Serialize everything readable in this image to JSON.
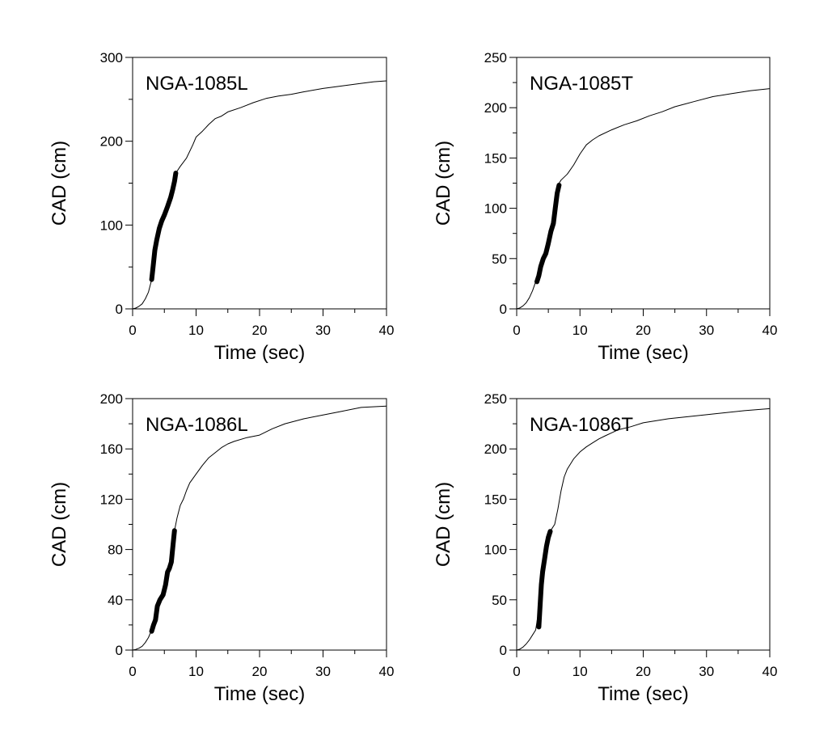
{
  "chart_data": [
    {
      "type": "line",
      "label": "NGA-1085L",
      "xlabel": "Time (sec)",
      "ylabel": "CAD (cm)",
      "xlim": [
        0,
        40
      ],
      "ylim": [
        0,
        300
      ],
      "xticks": [
        0,
        10,
        20,
        30,
        40
      ],
      "yticks": [
        0,
        100,
        200,
        300
      ],
      "grid": false,
      "series": [
        {
          "style": "thin",
          "x": [
            0,
            0.5,
            1,
            1.5,
            2,
            2.5,
            3,
            3.5,
            4,
            5,
            6,
            6.8,
            7.5,
            8.5,
            9.5,
            10,
            11,
            12,
            13,
            14,
            15,
            17,
            19,
            21,
            23,
            25,
            27,
            30,
            33,
            36,
            38,
            40
          ],
          "y": [
            0,
            1,
            3,
            6,
            12,
            20,
            35,
            70,
            92,
            112,
            133,
            162,
            170,
            180,
            196,
            205,
            212,
            220,
            227,
            230,
            235,
            240,
            246,
            251,
            254,
            256,
            259,
            263,
            266,
            269,
            271,
            272
          ]
        },
        {
          "style": "thick",
          "x": [
            3,
            3.2,
            3.5,
            3.8,
            4.2,
            4.6,
            5,
            5.5,
            6,
            6.3,
            6.6,
            6.8
          ],
          "y": [
            35,
            48,
            70,
            82,
            96,
            105,
            112,
            122,
            133,
            142,
            152,
            162
          ]
        }
      ]
    },
    {
      "type": "line",
      "label": "NGA-1085T",
      "xlabel": "Time (sec)",
      "ylabel": "CAD (cm)",
      "xlim": [
        0,
        40
      ],
      "ylim": [
        0,
        250
      ],
      "xticks": [
        0,
        10,
        20,
        30,
        40
      ],
      "yticks": [
        0,
        50,
        100,
        150,
        200,
        250
      ],
      "grid": false,
      "series": [
        {
          "style": "thin",
          "x": [
            0,
            0.5,
            1,
            1.5,
            2,
            2.5,
            3,
            3.5,
            4,
            4.5,
            5,
            5.5,
            6,
            6.5,
            7,
            8,
            9,
            10,
            11,
            12,
            13,
            15,
            17,
            19,
            21,
            23,
            25,
            28,
            31,
            34,
            37,
            40
          ],
          "y": [
            0,
            1,
            3,
            6,
            11,
            18,
            27,
            38,
            50,
            56,
            73,
            85,
            100,
            123,
            128,
            134,
            143,
            154,
            163,
            168,
            172,
            178,
            183,
            187,
            192,
            196,
            201,
            206,
            211,
            214,
            217,
            219
          ]
        },
        {
          "style": "thick",
          "x": [
            3.2,
            3.5,
            3.8,
            4.2,
            4.6,
            5,
            5.4,
            5.8,
            6.1,
            6.4,
            6.7
          ],
          "y": [
            27,
            33,
            42,
            50,
            55,
            65,
            77,
            85,
            100,
            115,
            123
          ]
        }
      ]
    },
    {
      "type": "line",
      "label": "NGA-1086L",
      "xlabel": "Time (sec)",
      "ylabel": "CAD (cm)",
      "xlim": [
        0,
        40
      ],
      "ylim": [
        0,
        200
      ],
      "xticks": [
        0,
        10,
        20,
        30,
        40
      ],
      "yticks": [
        0,
        40,
        80,
        120,
        160,
        200
      ],
      "grid": false,
      "series": [
        {
          "style": "thin",
          "x": [
            0,
            0.5,
            1,
            1.5,
            2,
            2.5,
            3,
            3.5,
            4,
            4.5,
            5,
            5.5,
            6,
            6.6,
            7,
            7.5,
            8,
            8.5,
            9,
            10,
            11,
            12,
            13,
            14,
            15,
            16,
            18,
            20,
            22,
            24,
            27,
            30,
            33,
            36,
            40
          ],
          "y": [
            0,
            0.5,
            1.5,
            3,
            6,
            10,
            16,
            24,
            36,
            42,
            46,
            60,
            66,
            95,
            105,
            115,
            120,
            127,
            133,
            140,
            147,
            153,
            157,
            161,
            164,
            166,
            169,
            171,
            176,
            180,
            184,
            187,
            190,
            193,
            194
          ]
        },
        {
          "style": "thick",
          "x": [
            3,
            3.3,
            3.6,
            3.9,
            4.3,
            4.8,
            5.2,
            5.5,
            5.8,
            6.1,
            6.4,
            6.6
          ],
          "y": [
            15,
            20,
            24,
            35,
            40,
            44,
            52,
            62,
            65,
            70,
            85,
            95
          ]
        }
      ]
    },
    {
      "type": "line",
      "label": "NGA-1086T",
      "xlabel": "Time (sec)",
      "ylabel": "CAD (cm)",
      "xlim": [
        0,
        40
      ],
      "ylim": [
        0,
        250
      ],
      "xticks": [
        0,
        10,
        20,
        30,
        40
      ],
      "yticks": [
        0,
        50,
        100,
        150,
        200,
        250
      ],
      "grid": false,
      "series": [
        {
          "style": "thin",
          "x": [
            0,
            0.5,
            1,
            1.5,
            2,
            2.5,
            3,
            3.5,
            4,
            4.5,
            5,
            5.5,
            6,
            6.5,
            7,
            7.5,
            8,
            9,
            10,
            11,
            12,
            13,
            14,
            15,
            16,
            18,
            20,
            22,
            24,
            27,
            30,
            33,
            36,
            40
          ],
          "y": [
            0,
            1,
            3,
            6,
            10,
            15,
            20,
            40,
            75,
            100,
            115,
            120,
            125,
            140,
            158,
            172,
            180,
            190,
            197,
            202,
            206,
            210,
            213,
            216,
            219,
            222,
            226,
            228,
            230,
            232,
            234,
            236,
            238,
            240
          ]
        },
        {
          "style": "thick",
          "x": [
            3.5,
            3.7,
            3.9,
            4.1,
            4.4,
            4.7,
            5,
            5.3
          ],
          "y": [
            23,
            45,
            65,
            78,
            90,
            103,
            112,
            118
          ]
        }
      ]
    }
  ]
}
